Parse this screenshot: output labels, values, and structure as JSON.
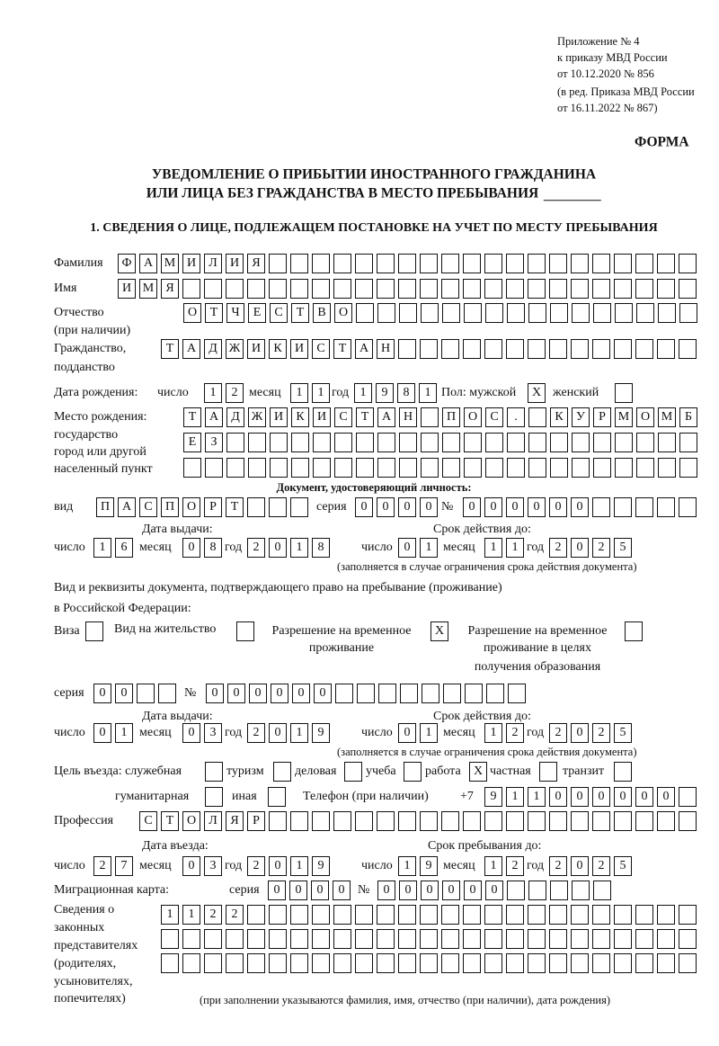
{
  "header": {
    "appendix": [
      "Приложение № 4",
      "к приказу МВД России",
      "от 10.12.2020 № 856"
    ],
    "revision": [
      "(в ред. Приказа МВД России",
      "от 16.11.2022 № 867)"
    ],
    "form_label": "ФОРМА",
    "title_line1": "УВЕДОМЛЕНИЕ О ПРИБЫТИИ ИНОСТРАННОГО ГРАЖДАНИНА",
    "title_line2": "ИЛИ ЛИЦА БЕЗ ГРАЖДАНСТВА В МЕСТО ПРЕБЫВАНИЯ",
    "section1": "1. СВЕДЕНИЯ О ЛИЦЕ, ПОДЛЕЖАЩЕМ ПОСТАНОВКЕ НА УЧЕТ ПО МЕСТУ ПРЕБЫВАНИЯ"
  },
  "labels": {
    "surname": "Фамилия",
    "name": "Имя",
    "patronymic": "Отчество",
    "patronymic_note": "(при наличии)",
    "citizenship": "Гражданство,",
    "citizenship2": "подданство",
    "dob": "Дата рождения:",
    "day": "число",
    "month": "месяц",
    "year": "год",
    "sex_male": "Пол: мужской",
    "sex_female": "женский",
    "birthplace": [
      "Место рождения:",
      "государство",
      "город или другой",
      "населенный пункт"
    ],
    "id_doc_heading": "Документ, удостоверяющий личность:",
    "doc_type": "вид",
    "series": "серия",
    "number": "№",
    "issue_date": "Дата выдачи:",
    "valid_until": "Срок действия до:",
    "validity_note": "(заполняется в случае ограничения срока действия документа)",
    "stay_doc_line1": "Вид и реквизиты документа, подтверждающего право на пребывание (проживание)",
    "stay_doc_line2": "в Российской Федерации:",
    "visa": "Виза",
    "residence_permit": "Вид на жительство",
    "temp_residence": [
      "Разрешение на временное",
      "проживание"
    ],
    "temp_residence_edu": [
      "Разрешение на временное",
      "проживание в целях",
      "получения образования"
    ],
    "purpose": "Цель въезда: служебная",
    "tourism": "туризм",
    "business": "деловая",
    "study": "учеба",
    "work": "работа",
    "private": "частная",
    "transit": "транзит",
    "humanitarian": "гуманитарная",
    "other": "иная",
    "phone": "Телефон (при наличии)",
    "phone_prefix": "+7",
    "profession": "Профессия",
    "entry_date": "Дата въезда:",
    "stay_until": "Срок пребывания до:",
    "migration_card": "Миграционная карта:",
    "representatives": [
      "Сведения о",
      "законных",
      "представителях",
      "(родителях,",
      "усыновителях,",
      "попечителях)"
    ],
    "representatives_note": "(при заполнении указываются фамилия, имя, отчество (при наличии), дата рождения)"
  },
  "fields": {
    "surname": "ФАМИЛИЯ",
    "name": "ИМЯ",
    "patronymic": "ОТЧЕСТВО",
    "citizenship": "ТАДЖИКИСТАН",
    "dob_day": "12",
    "dob_month": "11",
    "dob_year": "1981",
    "sex_male": "X",
    "sex_female": "",
    "birthplace_1": "ТАДЖИКИСТАН ПОС. КУРМОМБ",
    "birthplace_2": "ЕЗ",
    "birthplace_3": "",
    "doc_type": "ПАСПОРТ",
    "doc_series": "0000",
    "doc_number": "000000",
    "doc_issue_day": "16",
    "doc_issue_month": "08",
    "doc_issue_year": "2018",
    "doc_valid_day": "01",
    "doc_valid_month": "11",
    "doc_valid_year": "2025",
    "visa": "",
    "residence_permit": "",
    "temp_residence": "X",
    "temp_residence_edu": "",
    "stay_series": "00",
    "stay_number": "000000",
    "stay_issue_day": "01",
    "stay_issue_month": "03",
    "stay_issue_year": "2019",
    "stay_valid_day": "01",
    "stay_valid_month": "12",
    "stay_valid_year": "2025",
    "p_official": "",
    "p_tourism": "",
    "p_business": "",
    "p_study": "",
    "p_work": "X",
    "p_private": "",
    "p_transit": "",
    "p_humanitarian": "",
    "p_other": "",
    "phone": "911000000",
    "profession": "СТОЛЯР",
    "entry_day": "27",
    "entry_month": "03",
    "entry_year": "2019",
    "stay_until_day": "19",
    "stay_until_month": "12",
    "stay_until_year": "2025",
    "mc_series": "0000",
    "mc_number": "000000",
    "rep_1": "1122",
    "rep_2": "",
    "rep_3": ""
  }
}
